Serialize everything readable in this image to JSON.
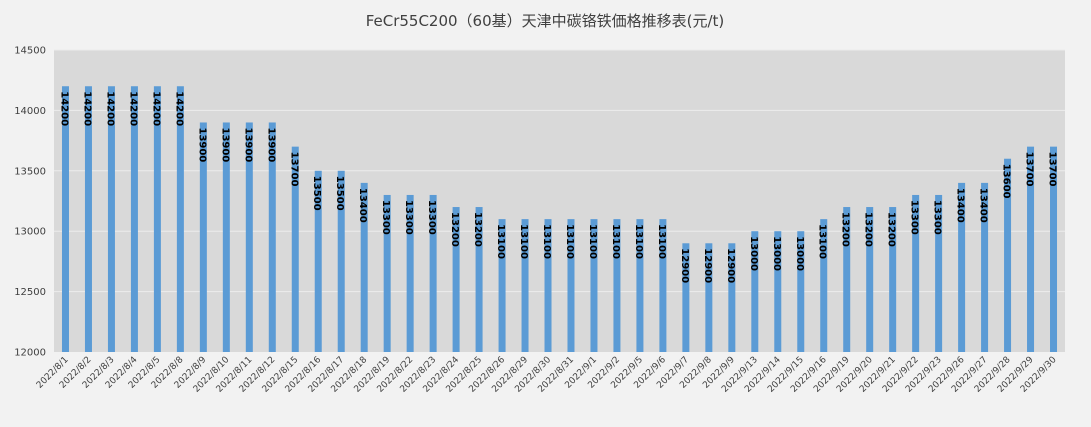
{
  "chart_data": {
    "type": "bar",
    "title": "FeCr55C200（60基）天津中碳铬铁価格推移表(元/t)",
    "xlabel": "",
    "ylabel": "",
    "ylim": [
      12000,
      14500
    ],
    "yticks": [
      12000,
      12500,
      13000,
      13500,
      14000,
      14500
    ],
    "grid": true,
    "legend": "none",
    "bar_color": "#5b9bd5",
    "plot_bg": "#d9d9d9",
    "categories": [
      "2022/8/1",
      "2022/8/2",
      "2022/8/3",
      "2022/8/4",
      "2022/8/5",
      "2022/8/8",
      "2022/8/9",
      "2022/8/10",
      "2022/8/11",
      "2022/8/12",
      "2022/8/15",
      "2022/8/16",
      "2022/8/17",
      "2022/8/18",
      "2022/8/19",
      "2022/8/22",
      "2022/8/23",
      "2022/8/24",
      "2022/8/25",
      "2022/8/26",
      "2022/8/29",
      "2022/8/30",
      "2022/8/31",
      "2022/9/1",
      "2022/9/2",
      "2022/9/5",
      "2022/9/6",
      "2022/9/7",
      "2022/9/8",
      "2022/9/9",
      "2022/9/13",
      "2022/9/14",
      "2022/9/15",
      "2022/9/16",
      "2022/9/19",
      "2022/9/20",
      "2022/9/21",
      "2022/9/22",
      "2022/9/23",
      "2022/9/26",
      "2022/9/27",
      "2022/9/28",
      "2022/9/29",
      "2022/9/30"
    ],
    "values": [
      14200,
      14200,
      14200,
      14200,
      14200,
      14200,
      13900,
      13900,
      13900,
      13900,
      13700,
      13500,
      13500,
      13400,
      13300,
      13300,
      13300,
      13200,
      13200,
      13100,
      13100,
      13100,
      13100,
      13100,
      13100,
      13100,
      13100,
      12900,
      12900,
      12900,
      13000,
      13000,
      13000,
      13100,
      13200,
      13200,
      13200,
      13300,
      13300,
      13400,
      13400,
      13600,
      13700,
      13700
    ]
  }
}
